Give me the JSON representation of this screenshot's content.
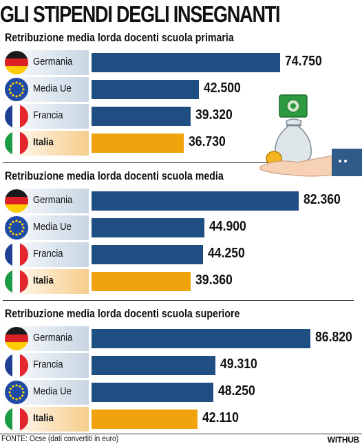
{
  "title": "GLI STIPENDI DEGLI INSEGNANTI",
  "source": "FONTE: Ocse (dati convertiti in euro)",
  "brand": "WITHUB",
  "colors": {
    "default_bar": "#1f4e82",
    "highlight_bar": "#f0a30c"
  },
  "chart_data": [
    {
      "type": "bar",
      "orientation": "horizontal",
      "title": "Retribuzione media lorda docenti scuola primaria",
      "categories": [
        "Germania",
        "Media Ue",
        "Francia",
        "Italia"
      ],
      "flags": [
        "germany-flag-icon",
        "eu-flag-icon",
        "france-flag-icon",
        "italy-flag-icon"
      ],
      "values": [
        74750,
        42500,
        39320,
        36730
      ],
      "value_labels": [
        "74.750",
        "42.500",
        "39.320",
        "36.730"
      ],
      "highlight": "Italia"
    },
    {
      "type": "bar",
      "orientation": "horizontal",
      "title": "Retribuzione media lorda docenti scuola media",
      "categories": [
        "Germania",
        "Media Ue",
        "Francia",
        "Italia"
      ],
      "flags": [
        "germany-flag-icon",
        "eu-flag-icon",
        "france-flag-icon",
        "italy-flag-icon"
      ],
      "values": [
        82360,
        44900,
        44250,
        39360
      ],
      "value_labels": [
        "82.360",
        "44.900",
        "44.250",
        "39.360"
      ],
      "highlight": "Italia"
    },
    {
      "type": "bar",
      "orientation": "horizontal",
      "title": "Retribuzione media lorda docenti scuola superiore",
      "categories": [
        "Germania",
        "Francia",
        "Media Ue",
        "Italia"
      ],
      "flags": [
        "germany-flag-icon",
        "france-flag-icon",
        "eu-flag-icon",
        "italy-flag-icon"
      ],
      "values": [
        86820,
        49310,
        48250,
        42110
      ],
      "value_labels": [
        "86.820",
        "49.310",
        "48.250",
        "42.110"
      ],
      "highlight": "Italia"
    }
  ]
}
